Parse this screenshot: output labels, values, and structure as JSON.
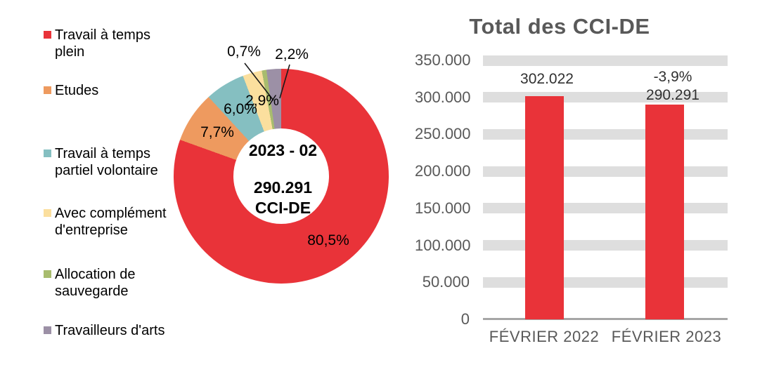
{
  "page": {
    "background": "#ffffff"
  },
  "chart_data": [
    {
      "id": "donut-cci-de",
      "type": "pie",
      "subtype": "donut",
      "legend_position": "left",
      "start_angle_deg": 0,
      "direction": "clockwise",
      "center_labels": {
        "period": "2023 - 02",
        "value": "290.291",
        "unit": "CCI-DE"
      },
      "slices": [
        {
          "label": "Travail à temps plein",
          "value": 80.5,
          "value_label": "80,5%",
          "color": "#e93339",
          "label_placement": "inside"
        },
        {
          "label": "Etudes",
          "value": 7.7,
          "value_label": "7,7%",
          "color": "#ee9a5f",
          "label_placement": "inside"
        },
        {
          "label": "Travail à temps partiel volontaire",
          "value": 6.0,
          "value_label": "6,0%",
          "color": "#85bfc1",
          "label_placement": "inside"
        },
        {
          "label": "Avec complément d'entreprise",
          "value": 2.9,
          "value_label": "2,9%",
          "color": "#fbdf9e",
          "label_placement": "inside"
        },
        {
          "label": "Allocation de sauvegarde",
          "value": 0.7,
          "value_label": "0,7%",
          "color": "#a8bc6e",
          "label_placement": "outside-leader-line"
        },
        {
          "label": "Travailleurs d'arts",
          "value": 2.2,
          "value_label": "2,2%",
          "color": "#9c90a6",
          "label_placement": "outside-leader-line"
        }
      ]
    },
    {
      "id": "bar-total-cci-de",
      "type": "bar",
      "title": "Total des CCI-DE",
      "categories": [
        "FÉVRIER 2022",
        "FÉVRIER 2023"
      ],
      "values": [
        302022,
        290291
      ],
      "bar_labels": [
        [
          "302.022"
        ],
        [
          "-3,9%",
          "290.291"
        ]
      ],
      "bar_color": "#e93339",
      "ylim": [
        0,
        350000
      ],
      "ytick_interval": 50000,
      "yticks": [
        "350.000",
        "300.000",
        "250.000",
        "200.000",
        "150.000",
        "100.000",
        "50.000",
        "0"
      ],
      "grid": "horizontal-bands",
      "gridband_color": "#dedede",
      "axis_line_color": "#a6a6a6",
      "axis_text_color": "#595959",
      "title_color": "#595959",
      "leader_line_color": "#1a1a1a"
    }
  ]
}
